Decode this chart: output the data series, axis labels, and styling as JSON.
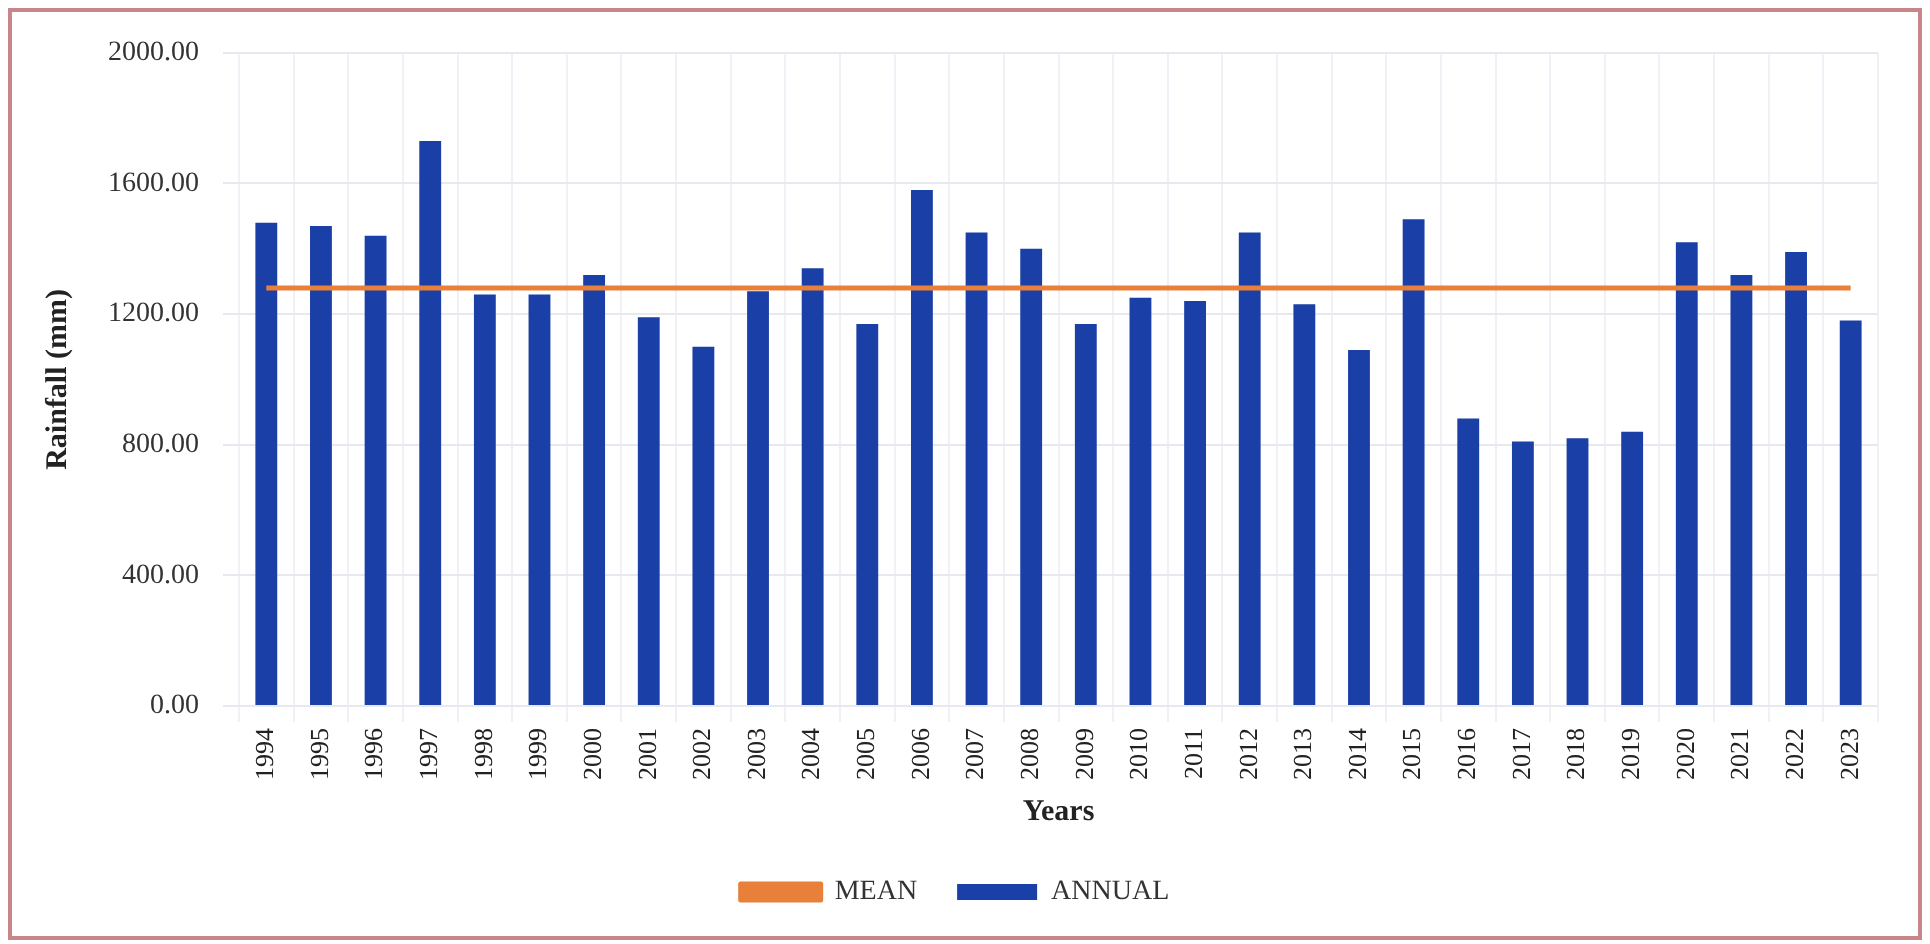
{
  "chart_data": {
    "type": "bar",
    "xlabel": "Years",
    "ylabel": "Rainfall (mm)",
    "categories": [
      "1994",
      "1995",
      "1996",
      "1997",
      "1998",
      "1999",
      "2000",
      "2001",
      "2002",
      "2003",
      "2004",
      "2005",
      "2006",
      "2007",
      "2008",
      "2009",
      "2010",
      "2011",
      "2012",
      "2013",
      "2014",
      "2015",
      "2016",
      "2017",
      "2018",
      "2019",
      "2020",
      "2021",
      "2022",
      "2023"
    ],
    "series": [
      {
        "name": "ANNUAL",
        "color": "#1a3fa6",
        "values": [
          1480,
          1470,
          1440,
          1730,
          1260,
          1260,
          1320,
          1190,
          1100,
          1270,
          1340,
          1170,
          1580,
          1450,
          1400,
          1170,
          1250,
          1240,
          1450,
          1230,
          1090,
          1490,
          880,
          810,
          820,
          840,
          1420,
          1320,
          1390,
          1180
        ]
      },
      {
        "name": "MEAN",
        "type": "line",
        "color": "#e8803a",
        "values": [
          1280,
          1280,
          1280,
          1280,
          1280,
          1280,
          1280,
          1280,
          1280,
          1280,
          1280,
          1280,
          1280,
          1280,
          1280,
          1280,
          1280,
          1280,
          1280,
          1280,
          1280,
          1280,
          1280,
          1280,
          1280,
          1280,
          1280,
          1280,
          1280,
          1280
        ]
      }
    ],
    "ylim": [
      0,
      2000
    ],
    "yticks": [
      {
        "value": 0,
        "label": "0.00"
      },
      {
        "value": 400,
        "label": "400.00"
      },
      {
        "value": 800,
        "label": "800.00"
      },
      {
        "value": 1200,
        "label": "1200.00"
      },
      {
        "value": 1600,
        "label": "1600.00"
      },
      {
        "value": 2000,
        "label": "2000.00"
      }
    ],
    "grid": true,
    "legend": "bottom",
    "marker": "none"
  }
}
